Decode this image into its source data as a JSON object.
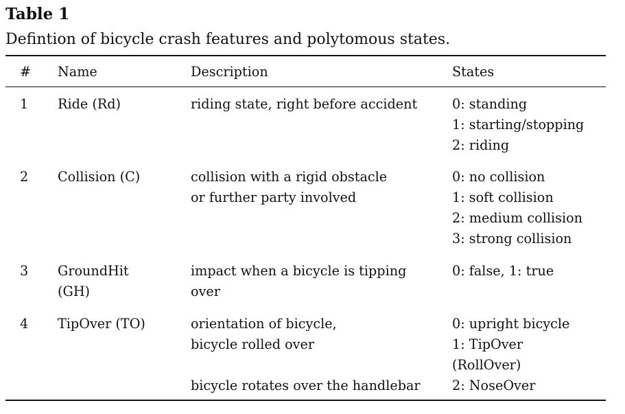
{
  "table": {
    "label": "Table 1",
    "caption": "Defintion of bicycle crash features and polytomous states.",
    "headers": {
      "num": "#",
      "name": "Name",
      "description": "Description",
      "states": "States"
    },
    "rows": [
      {
        "num": "1",
        "name": [
          "Ride (Rd)"
        ],
        "description": [
          "riding state, right before accident"
        ],
        "states": [
          "0: standing",
          "1: starting/stopping",
          "2: riding"
        ]
      },
      {
        "num": "2",
        "name": [
          "Collision (C)"
        ],
        "description": [
          "collision with a rigid obstacle",
          "or further party involved"
        ],
        "states": [
          "0: no collision",
          "1: soft collision",
          "2: medium collision",
          "3: strong collision"
        ]
      },
      {
        "num": "3",
        "name": [
          "GroundHit",
          "(GH)"
        ],
        "description": [
          "impact when a bicycle is tipping",
          "over"
        ],
        "states": [
          "0: false, 1: true"
        ]
      },
      {
        "num": "4",
        "name": [
          "TipOver (TO)"
        ],
        "description": [
          "orientation of bicycle,",
          "bicycle rolled over",
          "",
          "bicycle rotates over the handlebar"
        ],
        "states": [
          "0: upright bicycle",
          "1: TipOver",
          "(RollOver)",
          "2: NoseOver"
        ]
      }
    ]
  }
}
